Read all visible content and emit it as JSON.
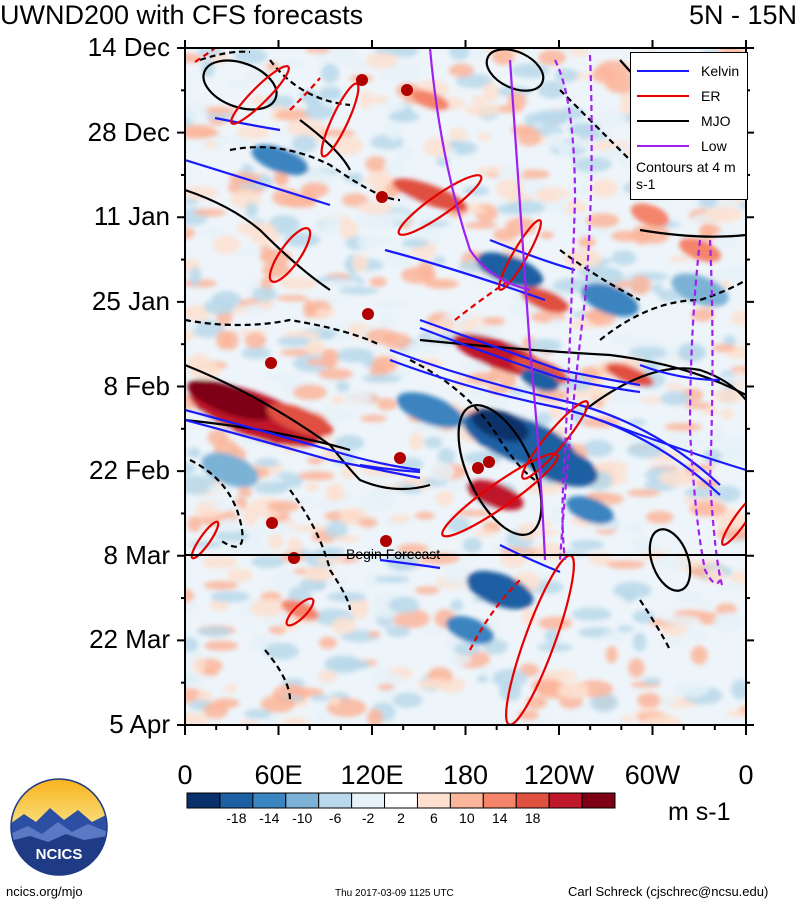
{
  "title": "UWND200 with CFS forecasts",
  "lat_band": "5N - 15N",
  "begin_forecast_label": "Begin Forecast",
  "legend": {
    "items": [
      {
        "name": "Kelvin",
        "color": "#1a1aff"
      },
      {
        "name": "ER",
        "color": "#e60000"
      },
      {
        "name": "MJO",
        "color": "#000000"
      },
      {
        "name": "Low",
        "color": "#a020f0"
      }
    ],
    "note": "Contours at 4 m s-1"
  },
  "colorbar": {
    "units": "m s-1",
    "tick_labels": [
      "-18",
      "-14",
      "-10",
      "-6",
      "-2",
      "2",
      "6",
      "10",
      "14",
      "18"
    ],
    "colors": [
      "#08306b",
      "#1c5fa3",
      "#3a84c0",
      "#7bb2d6",
      "#b9d8ea",
      "#e6f1f8",
      "#ffffff",
      "#fde0d0",
      "#fbb59a",
      "#f4846a",
      "#e0503f",
      "#c0182a",
      "#7e0015"
    ]
  },
  "chart_data": {
    "type": "heatmap",
    "title": "UWND200 with CFS forecasts",
    "subtitle": "5N - 15N",
    "x_ticks": [
      "0",
      "60E",
      "120E",
      "180",
      "120W",
      "60W",
      "0"
    ],
    "y_ticks": [
      "14 Dec",
      "28 Dec",
      "11 Jan",
      "25 Jan",
      "8 Feb",
      "22 Feb",
      "8 Mar",
      "22 Mar",
      "5 Apr"
    ],
    "xlim": [
      0,
      360
    ],
    "ylim": [
      "2016-12-14",
      "2017-04-05"
    ],
    "y_direction": "time increases downward",
    "forecast_start": "2017-03-08",
    "contour_interval": "4 m s-1",
    "filter_contours": [
      "Kelvin",
      "ER",
      "MJO",
      "Low"
    ]
  },
  "footer": {
    "left": "ncics.org/mjo",
    "middle": "Thu 2017-03-09 1125 UTC",
    "right": "Carl Schreck (cjschrec@ncsu.edu)"
  },
  "logo_text": "NCICS"
}
